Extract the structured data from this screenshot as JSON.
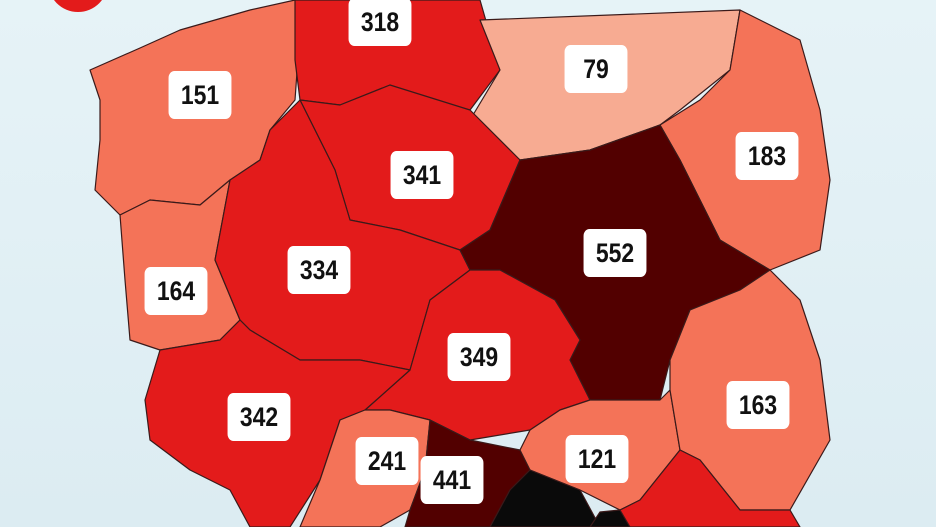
{
  "colors": {
    "low": "#f7ab92",
    "mid": "#f47358",
    "high": "#e31b1b",
    "very_high": "#520000",
    "max": "#0a0a0a",
    "sea": "#e3f1f5"
  },
  "regions": [
    {
      "id": "zachodniopomorskie",
      "value": "151",
      "level": "mid"
    },
    {
      "id": "pomorskie",
      "value": "318",
      "level": "high"
    },
    {
      "id": "warminsko-mazurskie",
      "value": "79",
      "level": "low"
    },
    {
      "id": "podlaskie",
      "value": "183",
      "level": "mid"
    },
    {
      "id": "kujawsko-pomorskie",
      "value": "341",
      "level": "high"
    },
    {
      "id": "lubuskie",
      "value": "164",
      "level": "mid"
    },
    {
      "id": "wielkopolskie",
      "value": "334",
      "level": "high"
    },
    {
      "id": "mazowieckie",
      "value": "552",
      "level": "very_high"
    },
    {
      "id": "lodzkie",
      "value": "349",
      "level": "high"
    },
    {
      "id": "dolnoslaskie",
      "value": "342",
      "level": "high"
    },
    {
      "id": "opolskie",
      "value": "241",
      "level": "mid"
    },
    {
      "id": "slaskie",
      "value": "441",
      "level": "very_high"
    },
    {
      "id": "swietokrzyskie",
      "value": "121",
      "level": "mid"
    },
    {
      "id": "lubelskie",
      "value": "163",
      "level": "mid"
    },
    {
      "id": "malopolskie",
      "value": "",
      "level": "max"
    },
    {
      "id": "podkarpackie",
      "value": "",
      "level": "high"
    }
  ]
}
